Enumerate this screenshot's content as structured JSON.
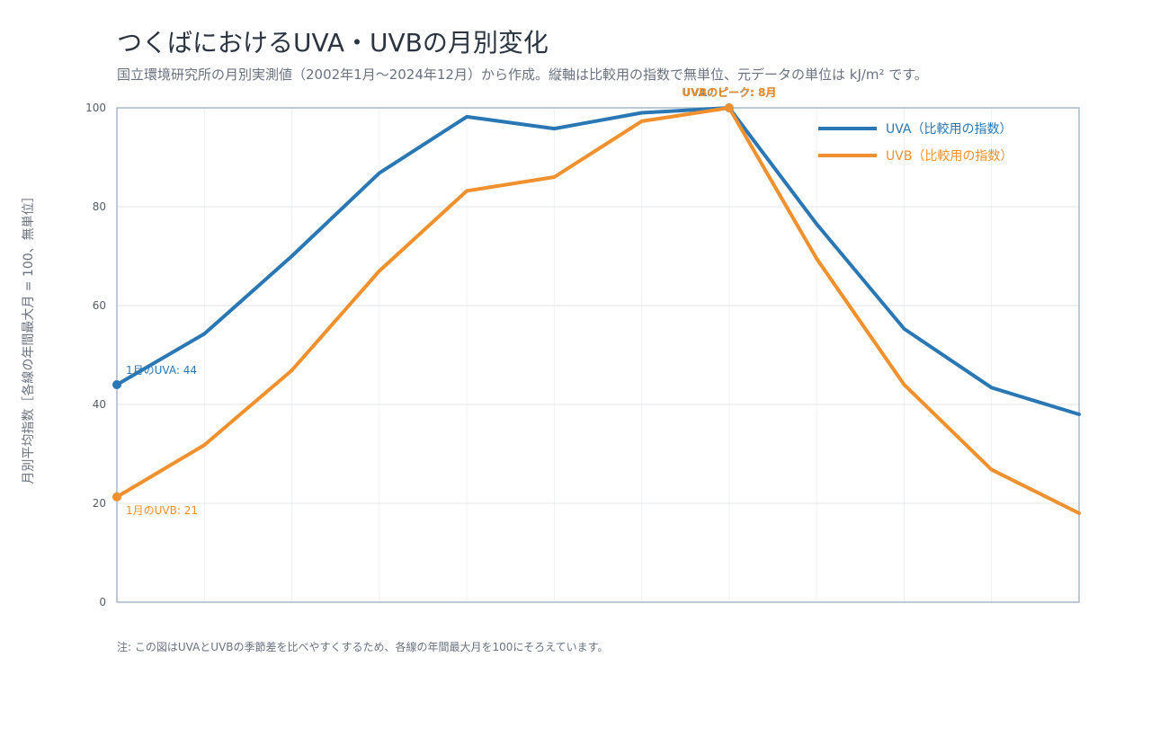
{
  "title": "つくばにおけるUVA・UVBの月別変化",
  "subtitle": "国立環境研究所の月別実測値（2002年1月〜2024年12月）から作成。縦軸は比較用の指数で無単位、元データの単位は kJ/m² です。",
  "note": "注: この図はUVAとUVBの季節差を比べやすくするため、各線の年間最大月を100にそろえています。",
  "chart_data": {
    "type": "line",
    "title": "つくばにおけるUVA・UVBの月別変化",
    "ylabel": "月別平均指数［各線の年間最大月 = 100、無単位］",
    "xlabel": "",
    "x": [
      1,
      2,
      3,
      4,
      5,
      6,
      7,
      8,
      9,
      10,
      11,
      12
    ],
    "ylim": [
      0,
      100
    ],
    "yticks": [
      0,
      20,
      40,
      60,
      80,
      100
    ],
    "grid": true,
    "legend_position": "top-right",
    "series": [
      {
        "name": "UVA（比較用の指数）",
        "color": "#2a77b4",
        "values": [
          44,
          54.3,
          70,
          86.8,
          98.2,
          95.8,
          99,
          100,
          76.5,
          55.3,
          43.4,
          38
        ]
      },
      {
        "name": "UVB（比較用の指数）",
        "color": "#f0902e",
        "values": [
          21.3,
          31.8,
          46.9,
          67,
          83.2,
          86,
          97.3,
          100,
          69.5,
          44,
          26.8,
          18
        ]
      }
    ],
    "annotations": [
      {
        "text": "1月のUVA: 44",
        "x": 1,
        "y": 44,
        "series": 0
      },
      {
        "text": "1月のUVB: 21",
        "x": 1,
        "y": 21.3,
        "series": 1
      },
      {
        "text": "UVAのピーク: 8月",
        "x": 8,
        "y": 100,
        "series": 0
      },
      {
        "text": "UVBのピーク: 8月",
        "x": 8,
        "y": 100,
        "series": 1
      }
    ]
  }
}
